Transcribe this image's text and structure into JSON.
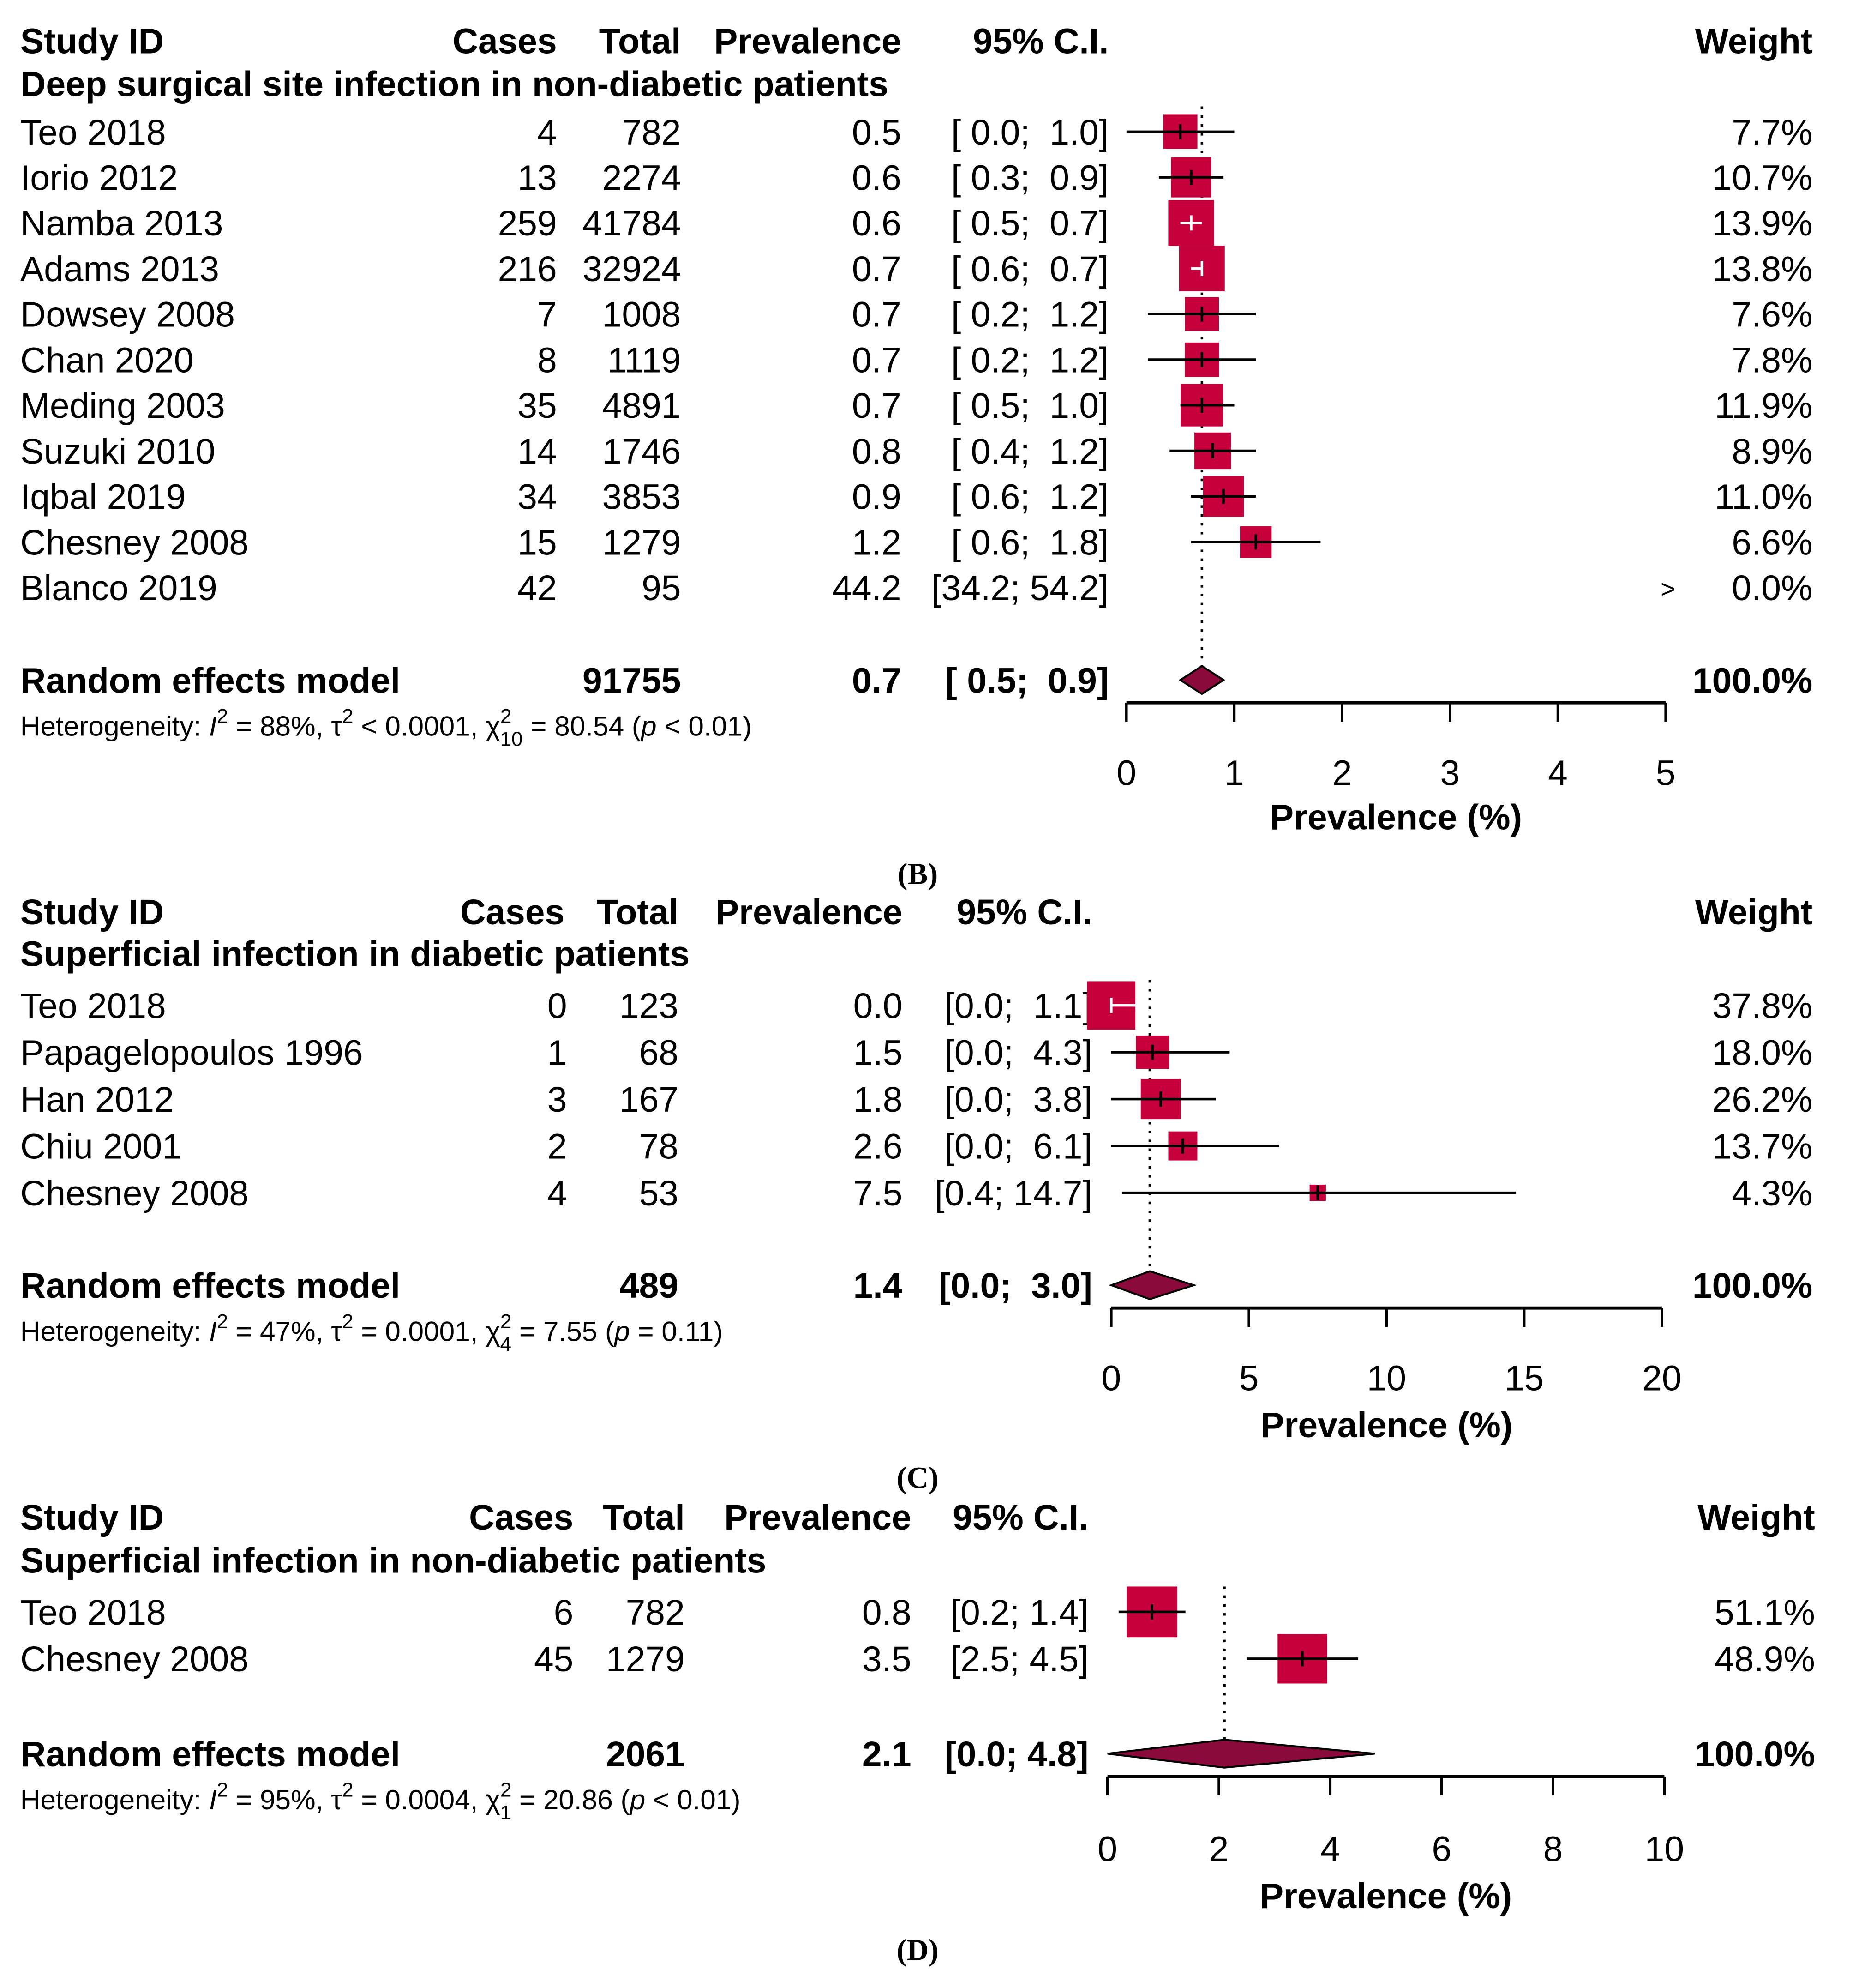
{
  "colors": {
    "box": "#C5003A",
    "diamond": "#8B0A3C",
    "line": "#000000"
  },
  "chart_data": [
    {
      "type": "forest",
      "panel_label": "(B)",
      "headers": {
        "study": "Study ID",
        "cases": "Cases",
        "total": "Total",
        "prev": "Prevalence",
        "ci": "95% C.I.",
        "weight": "Weight"
      },
      "subgroup": "Deep surgical site infection in non-diabetic patients",
      "rows": [
        {
          "study": "Teo 2018",
          "cases": "4",
          "total": "782",
          "prev": 0.5,
          "lo": 0.0,
          "hi": 1.0,
          "prev_label": "0.5",
          "ci": "[ 0.0;  1.0]",
          "weight": 7.7,
          "weight_label": "7.7%"
        },
        {
          "study": "Iorio 2012",
          "cases": "13",
          "total": "2274",
          "prev": 0.6,
          "lo": 0.3,
          "hi": 0.9,
          "prev_label": "0.6",
          "ci": "[ 0.3;  0.9]",
          "weight": 10.7,
          "weight_label": "10.7%"
        },
        {
          "study": "Namba 2013",
          "cases": "259",
          "total": "41784",
          "prev": 0.6,
          "lo": 0.5,
          "hi": 0.7,
          "prev_label": "0.6",
          "ci": "[ 0.5;  0.7]",
          "weight": 13.9,
          "weight_label": "13.9%"
        },
        {
          "study": "Adams 2013",
          "cases": "216",
          "total": "32924",
          "prev": 0.7,
          "lo": 0.6,
          "hi": 0.7,
          "prev_label": "0.7",
          "ci": "[ 0.6;  0.7]",
          "weight": 13.8,
          "weight_label": "13.8%"
        },
        {
          "study": "Dowsey 2008",
          "cases": "7",
          "total": "1008",
          "prev": 0.7,
          "lo": 0.2,
          "hi": 1.2,
          "prev_label": "0.7",
          "ci": "[ 0.2;  1.2]",
          "weight": 7.6,
          "weight_label": "7.6%"
        },
        {
          "study": "Chan 2020",
          "cases": "8",
          "total": "1119",
          "prev": 0.7,
          "lo": 0.2,
          "hi": 1.2,
          "prev_label": "0.7",
          "ci": "[ 0.2;  1.2]",
          "weight": 7.8,
          "weight_label": "7.8%"
        },
        {
          "study": "Meding 2003",
          "cases": "35",
          "total": "4891",
          "prev": 0.7,
          "lo": 0.5,
          "hi": 1.0,
          "prev_label": "0.7",
          "ci": "[ 0.5;  1.0]",
          "weight": 11.9,
          "weight_label": "11.9%"
        },
        {
          "study": "Suzuki 2010",
          "cases": "14",
          "total": "1746",
          "prev": 0.8,
          "lo": 0.4,
          "hi": 1.2,
          "prev_label": "0.8",
          "ci": "[ 0.4;  1.2]",
          "weight": 8.9,
          "weight_label": "8.9%"
        },
        {
          "study": "Iqbal 2019",
          "cases": "34",
          "total": "3853",
          "prev": 0.9,
          "lo": 0.6,
          "hi": 1.2,
          "prev_label": "0.9",
          "ci": "[ 0.6;  1.2]",
          "weight": 11.0,
          "weight_label": "11.0%"
        },
        {
          "study": "Chesney 2008",
          "cases": "15",
          "total": "1279",
          "prev": 1.2,
          "lo": 0.6,
          "hi": 1.8,
          "prev_label": "1.2",
          "ci": "[ 0.6;  1.8]",
          "weight": 6.6,
          "weight_label": "6.6%"
        },
        {
          "study": "Blanco 2019",
          "cases": "42",
          "total": "95",
          "prev": 44.2,
          "lo": 34.2,
          "hi": 54.2,
          "prev_label": "44.2",
          "ci": "[34.2; 54.2]",
          "weight": 0.0,
          "weight_label": "0.0%",
          "offscale_marker": ">"
        }
      ],
      "model": {
        "label": "Random effects model",
        "total": "91755",
        "prev": 0.7,
        "lo": 0.5,
        "hi": 0.9,
        "prev_label": "0.7",
        "ci": "[ 0.5;  0.9]",
        "weight_label": "100.0%"
      },
      "heterogeneity": {
        "prefix": "Heterogeneity: ",
        "I2": "= 88%,",
        "tau2": "< 0.0001,",
        "chi_df": "10",
        "chi": "= 80.54",
        "p": "< 0.01)"
      },
      "xlim": [
        0,
        5
      ],
      "xticks": [
        "0",
        "1",
        "2",
        "3",
        "4",
        "5"
      ],
      "xlabel": "Prevalence (%)"
    },
    {
      "type": "forest",
      "panel_label": "(C)",
      "headers": {
        "study": "Study ID",
        "cases": "Cases",
        "total": "Total",
        "prev": "Prevalence",
        "ci": "95% C.I.",
        "weight": "Weight"
      },
      "subgroup": "Superficial infection in diabetic patients",
      "rows": [
        {
          "study": "Teo 2018",
          "cases": "0",
          "total": "123",
          "prev": 0.0,
          "lo": 0.0,
          "hi": 1.1,
          "prev_label": "0.0",
          "ci": "[0.0;  1.1]",
          "weight": 37.8,
          "weight_label": "37.8%"
        },
        {
          "study": "Papagelopoulos 1996",
          "cases": "1",
          "total": "68",
          "prev": 1.5,
          "lo": 0.0,
          "hi": 4.3,
          "prev_label": "1.5",
          "ci": "[0.0;  4.3]",
          "weight": 18.0,
          "weight_label": "18.0%"
        },
        {
          "study": "Han 2012",
          "cases": "3",
          "total": "167",
          "prev": 1.8,
          "lo": 0.0,
          "hi": 3.8,
          "prev_label": "1.8",
          "ci": "[0.0;  3.8]",
          "weight": 26.2,
          "weight_label": "26.2%"
        },
        {
          "study": "Chiu 2001",
          "cases": "2",
          "total": "78",
          "prev": 2.6,
          "lo": 0.0,
          "hi": 6.1,
          "prev_label": "2.6",
          "ci": "[0.0;  6.1]",
          "weight": 13.7,
          "weight_label": "13.7%"
        },
        {
          "study": "Chesney 2008",
          "cases": "4",
          "total": "53",
          "prev": 7.5,
          "lo": 0.4,
          "hi": 14.7,
          "prev_label": "7.5",
          "ci": "[0.4; 14.7]",
          "weight": 4.3,
          "weight_label": "4.3%"
        }
      ],
      "model": {
        "label": "Random effects model",
        "total": "489",
        "prev": 1.4,
        "lo": 0.0,
        "hi": 3.0,
        "prev_label": "1.4",
        "ci": "[0.0;  3.0]",
        "weight_label": "100.0%"
      },
      "heterogeneity": {
        "prefix": "Heterogeneity: ",
        "I2": "= 47%,",
        "tau2": "= 0.0001,",
        "chi_df": "4",
        "chi": "= 7.55",
        "p": "= 0.11)"
      },
      "xlim": [
        0,
        20
      ],
      "xticks": [
        "0",
        "5",
        "10",
        "15",
        "20"
      ],
      "xlabel": "Prevalence (%)"
    },
    {
      "type": "forest",
      "panel_label": "(D)",
      "headers": {
        "study": "Study ID",
        "cases": "Cases",
        "total": "Total",
        "prev": "Prevalence",
        "ci": "95% C.I.",
        "weight": "Weight"
      },
      "subgroup": "Superficial infection in non-diabetic patients",
      "rows": [
        {
          "study": "Teo 2018",
          "cases": "6",
          "total": "782",
          "prev": 0.8,
          "lo": 0.2,
          "hi": 1.4,
          "prev_label": "0.8",
          "ci": "[0.2; 1.4]",
          "weight": 51.1,
          "weight_label": "51.1%"
        },
        {
          "study": "Chesney 2008",
          "cases": "45",
          "total": "1279",
          "prev": 3.5,
          "lo": 2.5,
          "hi": 4.5,
          "prev_label": "3.5",
          "ci": "[2.5; 4.5]",
          "weight": 48.9,
          "weight_label": "48.9%"
        }
      ],
      "model": {
        "label": "Random effects model",
        "total": "2061",
        "prev": 2.1,
        "lo": 0.0,
        "hi": 4.8,
        "prev_label": "2.1",
        "ci": "[0.0; 4.8]",
        "weight_label": "100.0%"
      },
      "heterogeneity": {
        "prefix": "Heterogeneity: ",
        "I2": "= 95%,",
        "tau2": "= 0.0004,",
        "chi_df": "1",
        "chi": "= 20.86",
        "p": "< 0.01)"
      },
      "xlim": [
        0,
        10
      ],
      "xticks": [
        "0",
        "2",
        "4",
        "6",
        "8",
        "10"
      ],
      "xlabel": "Prevalence (%)"
    }
  ]
}
